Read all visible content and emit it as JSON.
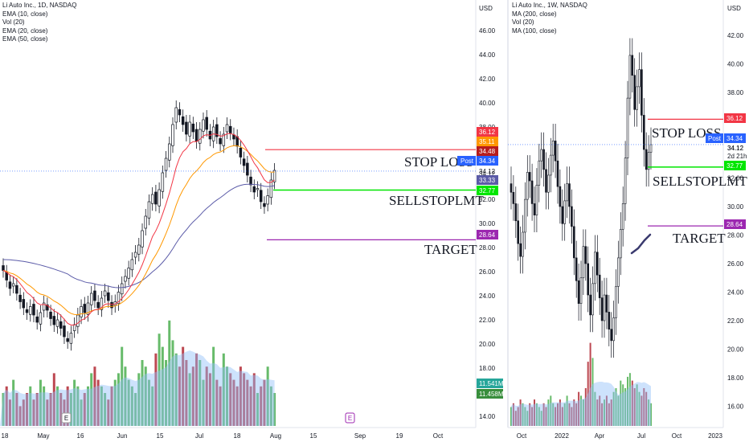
{
  "left_panel": {
    "legend": [
      "Li Auto Inc., 1D, NASDAQ",
      "EMA (10, close)",
      "Vol (20)",
      "EMA (20, close)",
      "EMA (50, close)"
    ],
    "axis_unit": "USD",
    "y_ticks": [
      "46.00",
      "44.00",
      "42.00",
      "40.00",
      "38.00",
      "34.12",
      "32.00",
      "30.00",
      "28.00",
      "26.00",
      "24.00",
      "22.00",
      "20.00",
      "18.00",
      "16.00",
      "14.00"
    ],
    "x_ticks": [
      "18",
      "May",
      "16",
      "Jun",
      "15",
      "Jul",
      "18",
      "Aug",
      "15",
      "Sep",
      "19",
      "Oct"
    ],
    "price_tags": [
      {
        "text": "36.12",
        "color": "#f23645"
      },
      {
        "text": "35.11",
        "color": "#ff9800"
      },
      {
        "text": "34.48",
        "color": "#b71c1c"
      },
      {
        "text": "34.34",
        "color": "#2962ff"
      },
      {
        "text": "33.33",
        "color": "#5b5ba8"
      },
      {
        "text": "32.77",
        "color": "#00e600"
      },
      {
        "text": "28.64",
        "color": "#9c27b0"
      },
      {
        "text": "11.541M",
        "color": "#26a69a"
      },
      {
        "text": "11.458M",
        "color": "#388e3c"
      }
    ],
    "post_label": "Post",
    "annotations": {
      "stop_loss": "STOP LOSS",
      "sellstop": "SELLSTOPLMT",
      "target": "TARGET"
    },
    "event_marker": "E"
  },
  "right_panel": {
    "legend": [
      "Li Auto Inc., 1W, NASDAQ",
      "MA (200, close)",
      "Vol (20)",
      "MA (100, close)"
    ],
    "axis_unit": "USD",
    "y_ticks": [
      "42.00",
      "40.00",
      "38.00",
      "34.12",
      "32.00",
      "30.00",
      "28.00",
      "26.00",
      "24.00",
      "22.00",
      "20.00",
      "18.00",
      "16.00"
    ],
    "x_ticks": [
      "Oct",
      "2022",
      "Apr",
      "Jul",
      "Oct",
      "2023"
    ],
    "price_tags": [
      {
        "text": "36.12",
        "color": "#f23645"
      },
      {
        "text": "34.34",
        "color": "#2962ff"
      },
      {
        "text": "32.77",
        "color": "#00e600"
      },
      {
        "text": "28.64",
        "color": "#9c27b0"
      }
    ],
    "post_label": "Post",
    "countdown": "2d 21h",
    "annotations": {
      "stop_loss": "STOP LOSS",
      "sellstop": "SELLSTOPLMT",
      "target": "TARGET"
    }
  },
  "chart_data": [
    {
      "type": "candlestick",
      "title": "Li Auto Inc., 1D, NASDAQ",
      "ylabel": "USD",
      "ylim": [
        12.7,
        47.3
      ],
      "levels": {
        "stop_loss": 36.12,
        "sell_stop_limit": 32.77,
        "target": 28.64
      },
      "series": [
        {
          "name": "EMA (10, close)",
          "color": "#f23645"
        },
        {
          "name": "EMA (20, close)",
          "color": "#ff9800"
        },
        {
          "name": "EMA (50, close)",
          "color": "#5b5ba8"
        },
        {
          "name": "Vol (20)",
          "color": "#90bff9"
        }
      ],
      "closes": [
        26.1,
        25.3,
        24.6,
        25.0,
        24.2,
        23.5,
        23.0,
        22.6,
        23.1,
        22.4,
        21.8,
        22.6,
        23.4,
        22.8,
        22.1,
        21.6,
        22.0,
        21.3,
        20.6,
        20.2,
        20.9,
        21.6,
        22.4,
        23.1,
        22.6,
        23.4,
        24.2,
        23.6,
        23.0,
        23.8,
        24.4,
        23.6,
        23.0,
        23.5,
        24.3,
        25.0,
        25.6,
        26.3,
        27.0,
        27.6,
        28.2,
        29.4,
        30.6,
        31.8,
        32.4,
        31.6,
        32.8,
        34.2,
        35.4,
        36.6,
        38.2,
        39.6,
        39.0,
        38.2,
        37.4,
        38.4,
        37.6,
        36.8,
        37.8,
        38.6,
        37.8,
        37.0,
        38.0,
        37.2,
        36.6,
        37.4,
        38.2,
        37.5,
        37.0,
        36.4,
        35.5,
        34.8,
        34.0,
        33.2,
        32.6,
        32.9,
        31.8,
        31.4,
        32.3,
        33.6,
        34.4
      ],
      "volume_pattern": [
        5,
        6,
        4,
        7,
        5,
        3,
        4,
        5,
        6,
        4,
        5,
        7,
        6,
        4,
        5,
        8,
        6,
        5,
        4,
        6,
        5,
        7,
        6,
        4,
        5,
        6,
        8,
        9,
        7,
        6,
        5,
        4,
        6,
        7,
        8,
        12,
        9,
        7,
        6,
        5,
        8,
        10,
        9,
        7,
        6,
        11,
        14,
        12,
        10,
        16,
        13,
        11,
        9,
        12,
        10,
        8,
        9,
        11,
        10,
        7,
        9,
        8,
        12,
        7,
        6,
        11,
        9,
        8,
        7,
        6,
        9,
        8,
        7,
        6,
        8,
        5,
        6,
        7,
        9,
        6,
        5
      ]
    },
    {
      "type": "candlestick",
      "title": "Li Auto Inc., 1W, NASDAQ",
      "ylabel": "USD",
      "ylim": [
        14.5,
        45.3
      ],
      "levels": {
        "stop_loss": 36.12,
        "sell_stop_limit": 32.77,
        "target": 28.64
      },
      "series": [
        {
          "name": "MA (200, close)"
        },
        {
          "name": "MA (100, close)"
        },
        {
          "name": "Vol (20)",
          "color": "#90bff9"
        }
      ],
      "closes": [
        31.0,
        30.2,
        29.0,
        27.4,
        26.5,
        28.2,
        30.5,
        32.4,
        31.8,
        30.2,
        29.4,
        31.5,
        33.2,
        34.0,
        32.6,
        31.0,
        32.2,
        33.6,
        34.6,
        33.2,
        31.4,
        30.0,
        28.8,
        30.4,
        31.6,
        30.0,
        28.6,
        26.4,
        24.8,
        23.2,
        25.0,
        27.2,
        26.0,
        23.8,
        22.4,
        24.6,
        26.8,
        25.2,
        23.6,
        22.0,
        23.8,
        22.6,
        21.4,
        20.6,
        22.2,
        24.4,
        26.4,
        28.4,
        30.2,
        33.4,
        37.6,
        40.6,
        39.2,
        36.8,
        38.4,
        39.6,
        36.4,
        34.0,
        32.6,
        33.8,
        34.34
      ],
      "volume_pattern": [
        5,
        6,
        4,
        5,
        7,
        6,
        5,
        4,
        6,
        5,
        7,
        6,
        5,
        4,
        6,
        5,
        7,
        8,
        6,
        5,
        6,
        7,
        5,
        6,
        8,
        6,
        5,
        7,
        6,
        9,
        8,
        7,
        10,
        17,
        22,
        18,
        9,
        7,
        8,
        6,
        7,
        8,
        6,
        7,
        9,
        10,
        8,
        12,
        11,
        10,
        13,
        14,
        12,
        10,
        11,
        9,
        8,
        10,
        9,
        7,
        6
      ]
    }
  ]
}
